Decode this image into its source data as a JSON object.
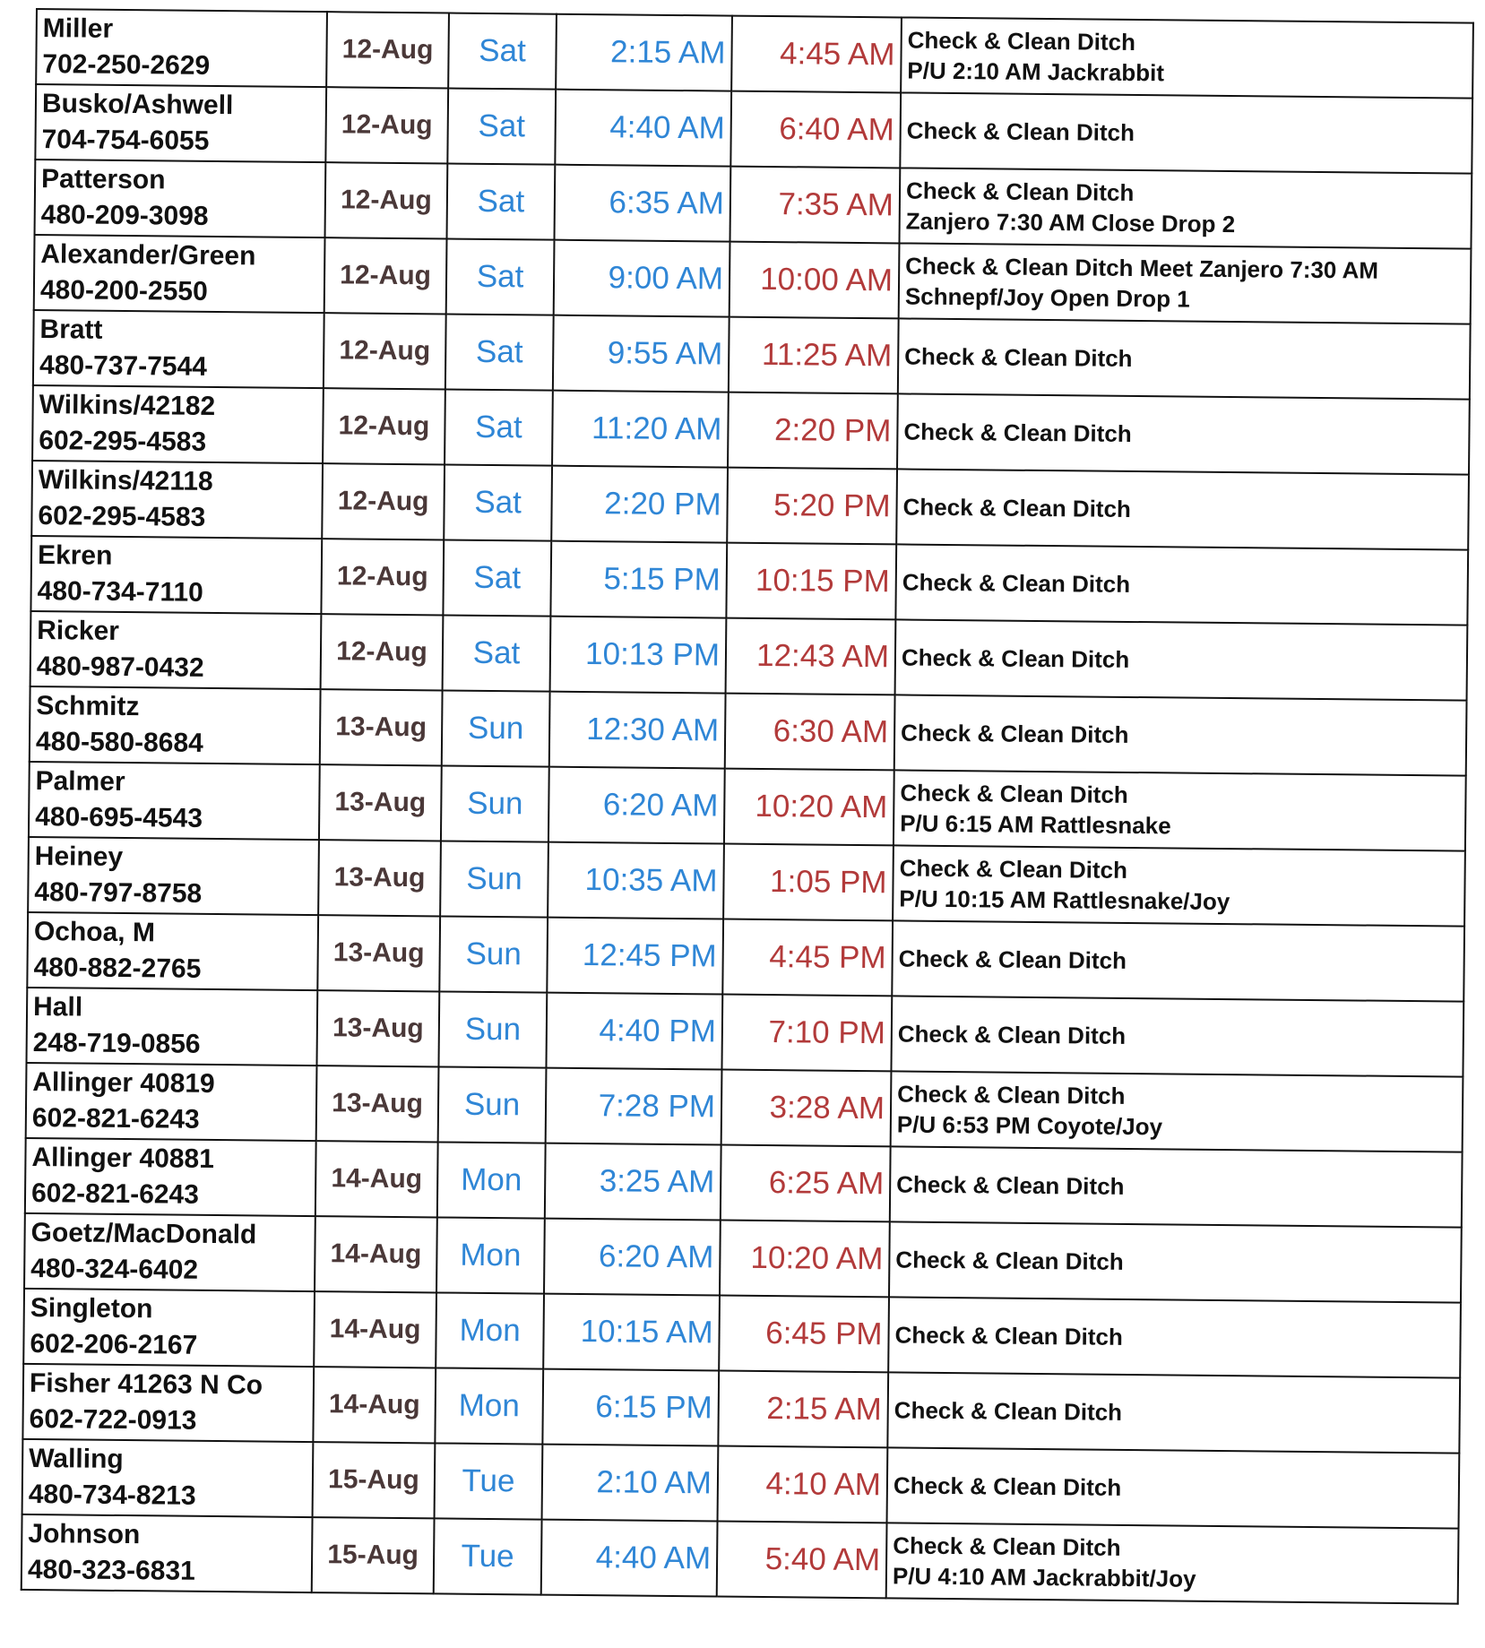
{
  "colors": {
    "day_time": "#2f86d6",
    "end_time": "#b23a3a",
    "date": "#4a3838"
  },
  "rows": [
    {
      "name": "Miller",
      "phone": "702-250-2629",
      "date": "12-Aug",
      "day": "Sat",
      "start": "2:15 AM",
      "end": "4:45 AM",
      "note1": "Check & Clean Ditch",
      "note2": "P/U 2:10 AM Jackrabbit"
    },
    {
      "name": "Busko/Ashwell",
      "phone": "704-754-6055",
      "date": "12-Aug",
      "day": "Sat",
      "start": "4:40 AM",
      "end": "6:40 AM",
      "note1": "Check & Clean Ditch",
      "note2": ""
    },
    {
      "name": "Patterson",
      "phone": "480-209-3098",
      "date": "12-Aug",
      "day": "Sat",
      "start": "6:35 AM",
      "end": "7:35 AM",
      "note1": "Check & Clean Ditch",
      "note2": "Zanjero 7:30 AM Close Drop 2"
    },
    {
      "name": "Alexander/Green",
      "phone": "480-200-2550",
      "date": "12-Aug",
      "day": "Sat",
      "start": "9:00 AM",
      "end": "10:00 AM",
      "note1": "Check & Clean Ditch  Meet Zanjero 7:30 AM",
      "note2": "Schnepf/Joy Open Drop 1"
    },
    {
      "name": "Bratt",
      "phone": "480-737-7544",
      "date": "12-Aug",
      "day": "Sat",
      "start": "9:55 AM",
      "end": "11:25 AM",
      "note1": "Check & Clean Ditch",
      "note2": ""
    },
    {
      "name": "Wilkins/42182",
      "phone": "602-295-4583",
      "date": "12-Aug",
      "day": "Sat",
      "start": "11:20 AM",
      "end": "2:20 PM",
      "note1": "Check & Clean Ditch",
      "note2": ""
    },
    {
      "name": "Wilkins/42118",
      "phone": "602-295-4583",
      "date": "12-Aug",
      "day": "Sat",
      "start": "2:20 PM",
      "end": "5:20 PM",
      "note1": "Check & Clean Ditch",
      "note2": ""
    },
    {
      "name": "Ekren",
      "phone": "480-734-7110",
      "date": "12-Aug",
      "day": "Sat",
      "start": "5:15 PM",
      "end": "10:15 PM",
      "note1": "Check & Clean Ditch",
      "note2": ""
    },
    {
      "name": "Ricker",
      "phone": "480-987-0432",
      "date": "12-Aug",
      "day": "Sat",
      "start": "10:13 PM",
      "end": "12:43 AM",
      "note1": "Check & Clean Ditch",
      "note2": ""
    },
    {
      "name": "Schmitz",
      "phone": "480-580-8684",
      "date": "13-Aug",
      "day": "Sun",
      "start": "12:30 AM",
      "end": "6:30 AM",
      "note1": "Check & Clean Ditch",
      "note2": ""
    },
    {
      "name": "Palmer",
      "phone": "480-695-4543",
      "date": "13-Aug",
      "day": "Sun",
      "start": "6:20 AM",
      "end": "10:20 AM",
      "note1": "Check & Clean Ditch",
      "note2": "P/U 6:15 AM Rattlesnake"
    },
    {
      "name": "Heiney",
      "phone": "480-797-8758",
      "date": "13-Aug",
      "day": "Sun",
      "start": "10:35 AM",
      "end": "1:05 PM",
      "note1": "Check & Clean Ditch",
      "note2": "P/U 10:15 AM Rattlesnake/Joy"
    },
    {
      "name": "Ochoa, M",
      "phone": "480-882-2765",
      "date": "13-Aug",
      "day": "Sun",
      "start": "12:45 PM",
      "end": "4:45 PM",
      "note1": "Check & Clean Ditch",
      "note2": ""
    },
    {
      "name": "Hall",
      "phone": "248-719-0856",
      "date": "13-Aug",
      "day": "Sun",
      "start": "4:40 PM",
      "end": "7:10 PM",
      "note1": "Check & Clean Ditch",
      "note2": ""
    },
    {
      "name": "Allinger 40819",
      "phone": "602-821-6243",
      "date": "13-Aug",
      "day": "Sun",
      "start": "7:28 PM",
      "end": "3:28 AM",
      "note1": "Check & Clean Ditch",
      "note2": "P/U 6:53 PM Coyote/Joy"
    },
    {
      "name": "Allinger  40881",
      "phone": "602-821-6243",
      "date": "14-Aug",
      "day": "Mon",
      "start": "3:25 AM",
      "end": "6:25 AM",
      "note1": "Check & Clean Ditch",
      "note2": ""
    },
    {
      "name": "Goetz/MacDonald",
      "phone": "480-324-6402",
      "date": "14-Aug",
      "day": "Mon",
      "start": "6:20 AM",
      "end": "10:20 AM",
      "note1": "Check & Clean Ditch",
      "note2": ""
    },
    {
      "name": "Singleton",
      "phone": "602-206-2167",
      "date": "14-Aug",
      "day": "Mon",
      "start": "10:15 AM",
      "end": "6:45 PM",
      "note1": "Check & Clean Ditch",
      "note2": ""
    },
    {
      "name": "Fisher 41263 N Co",
      "phone": "602-722-0913",
      "date": "14-Aug",
      "day": "Mon",
      "start": "6:15 PM",
      "end": "2:15 AM",
      "note1": "Check & Clean Ditch",
      "note2": ""
    },
    {
      "name": "Walling",
      "phone": "480-734-8213",
      "date": "15-Aug",
      "day": "Tue",
      "start": "2:10 AM",
      "end": "4:10 AM",
      "note1": "Check & Clean Ditch",
      "note2": ""
    },
    {
      "name": "Johnson",
      "phone": "480-323-6831",
      "date": "15-Aug",
      "day": "Tue",
      "start": "4:40 AM",
      "end": "5:40 AM",
      "note1": "Check & Clean Ditch",
      "note2": "P/U 4:10 AM Jackrabbit/Joy"
    }
  ]
}
